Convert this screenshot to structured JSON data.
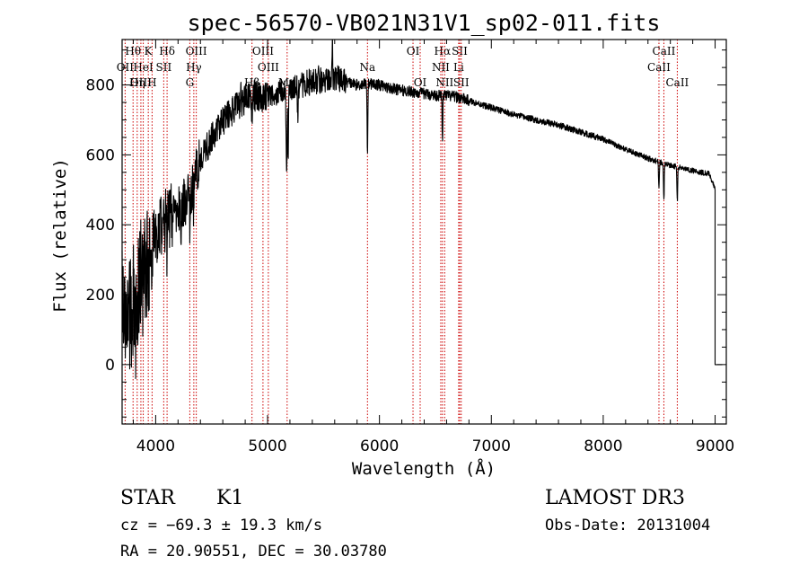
{
  "chart_data": {
    "type": "line",
    "title": "spec-56570-VB021N31V1_sp02-011.fits",
    "xlabel": "Wavelength (Å)",
    "ylabel": "Flux (relative)",
    "xlim": [
      3700,
      9100
    ],
    "ylim": [
      -170,
      930
    ],
    "x_ticks": [
      4000,
      5000,
      6000,
      7000,
      8000,
      9000
    ],
    "y_ticks": [
      0,
      200,
      400,
      600,
      800
    ],
    "x_tick_labels": [
      "4000",
      "5000",
      "6000",
      "7000",
      "8000",
      "9000"
    ],
    "y_tick_labels": [
      "0",
      "200",
      "400",
      "600",
      "800"
    ],
    "x_minor_step": 200,
    "y_minor_step": 50,
    "spectrum": {
      "x_start": 3700,
      "x_end": 9000,
      "anchors": [
        [
          3700,
          200
        ],
        [
          3750,
          120
        ],
        [
          3800,
          180
        ],
        [
          3850,
          230
        ],
        [
          3900,
          280
        ],
        [
          3950,
          330
        ],
        [
          4000,
          380
        ],
        [
          4100,
          420
        ],
        [
          4200,
          440
        ],
        [
          4300,
          480
        ],
        [
          4400,
          590
        ],
        [
          4500,
          650
        ],
        [
          4600,
          700
        ],
        [
          4700,
          730
        ],
        [
          4800,
          760
        ],
        [
          4900,
          770
        ],
        [
          5000,
          760
        ],
        [
          5100,
          780
        ],
        [
          5200,
          790
        ],
        [
          5300,
          800
        ],
        [
          5400,
          810
        ],
        [
          5500,
          815
        ],
        [
          5600,
          820
        ],
        [
          5700,
          810
        ],
        [
          5800,
          800
        ],
        [
          5900,
          805
        ],
        [
          6000,
          800
        ],
        [
          6100,
          790
        ],
        [
          6200,
          785
        ],
        [
          6300,
          780
        ],
        [
          6400,
          775
        ],
        [
          6500,
          770
        ],
        [
          6600,
          770
        ],
        [
          6700,
          765
        ],
        [
          6800,
          755
        ],
        [
          6900,
          745
        ],
        [
          7000,
          735
        ],
        [
          7200,
          715
        ],
        [
          7400,
          700
        ],
        [
          7600,
          685
        ],
        [
          7800,
          665
        ],
        [
          8000,
          645
        ],
        [
          8200,
          615
        ],
        [
          8400,
          590
        ],
        [
          8600,
          570
        ],
        [
          8800,
          555
        ],
        [
          8950,
          545
        ],
        [
          9000,
          500
        ]
      ],
      "absorption": [
        [
          3820,
          -100
        ],
        [
          3889,
          -80
        ],
        [
          3933,
          -120
        ],
        [
          3968,
          -110
        ],
        [
          4101,
          -80
        ],
        [
          4227,
          -60
        ],
        [
          4307,
          -150
        ],
        [
          4340,
          -80
        ],
        [
          4861,
          -60
        ],
        [
          5167,
          -150
        ],
        [
          5173,
          -160
        ],
        [
          5184,
          -180
        ],
        [
          5270,
          -80
        ],
        [
          5893,
          -200
        ],
        [
          6563,
          -130
        ],
        [
          8498,
          -80
        ],
        [
          8542,
          -110
        ],
        [
          8662,
          -100
        ]
      ],
      "spikes": [
        [
          5580,
          140
        ],
        [
          4760,
          60
        ],
        [
          5450,
          60
        ]
      ]
    },
    "lines": [
      {
        "label": "Hθ",
        "wavelength": 3798,
        "row": 0
      },
      {
        "label": "K",
        "wavelength": 3934,
        "row": 0
      },
      {
        "label": "Hδ",
        "wavelength": 4102,
        "row": 0
      },
      {
        "label": "OIII",
        "wavelength": 4363,
        "row": 0
      },
      {
        "label": "OIII",
        "wavelength": 4959,
        "row": 0
      },
      {
        "label": "OI",
        "wavelength": 6300,
        "row": 0
      },
      {
        "label": "Hα",
        "wavelength": 6563,
        "row": 0
      },
      {
        "label": "SII",
        "wavelength": 6717,
        "row": 0
      },
      {
        "label": "CaII",
        "wavelength": 8542,
        "row": 0
      },
      {
        "label": "OII",
        "wavelength": 3727,
        "row": 1
      },
      {
        "label": "HeI",
        "wavelength": 3889,
        "row": 1
      },
      {
        "label": "SII",
        "wavelength": 4072,
        "row": 1
      },
      {
        "label": "Hγ",
        "wavelength": 4341,
        "row": 1
      },
      {
        "label": "OIII",
        "wavelength": 5007,
        "row": 1
      },
      {
        "label": "Na",
        "wavelength": 5893,
        "row": 1
      },
      {
        "label": "NII",
        "wavelength": 6548,
        "row": 1
      },
      {
        "label": "Li",
        "wavelength": 6708,
        "row": 1
      },
      {
        "label": "CaII",
        "wavelength": 8498,
        "row": 1
      },
      {
        "label": "OIII",
        "wavelength": 3868,
        "row": 2
      },
      {
        "label": "Hη",
        "wavelength": 3835,
        "row": 2
      },
      {
        "label": "H",
        "wavelength": 3968,
        "row": 2
      },
      {
        "label": "G",
        "wavelength": 4305,
        "row": 2
      },
      {
        "label": "Hβ",
        "wavelength": 4861,
        "row": 2
      },
      {
        "label": "Mg",
        "wavelength": 5175,
        "row": 2
      },
      {
        "label": "OI",
        "wavelength": 6364,
        "row": 2
      },
      {
        "label": "NII",
        "wavelength": 6583,
        "row": 2
      },
      {
        "label": "SII",
        "wavelength": 6731,
        "row": 2
      },
      {
        "label": "CaII",
        "wavelength": 8662,
        "row": 2
      }
    ],
    "annotations": {
      "class": "STAR",
      "subclass": "K1",
      "survey": "LAMOST DR3",
      "redshift": "cz = −69.3 ± 19.3 km/s",
      "obs_date": "Obs-Date: 20131004",
      "coords": "RA =  20.90551, DEC =  30.03780"
    },
    "colors": {
      "lines": "#cc0000",
      "spectrum": "#000000",
      "axes": "#000000"
    }
  }
}
